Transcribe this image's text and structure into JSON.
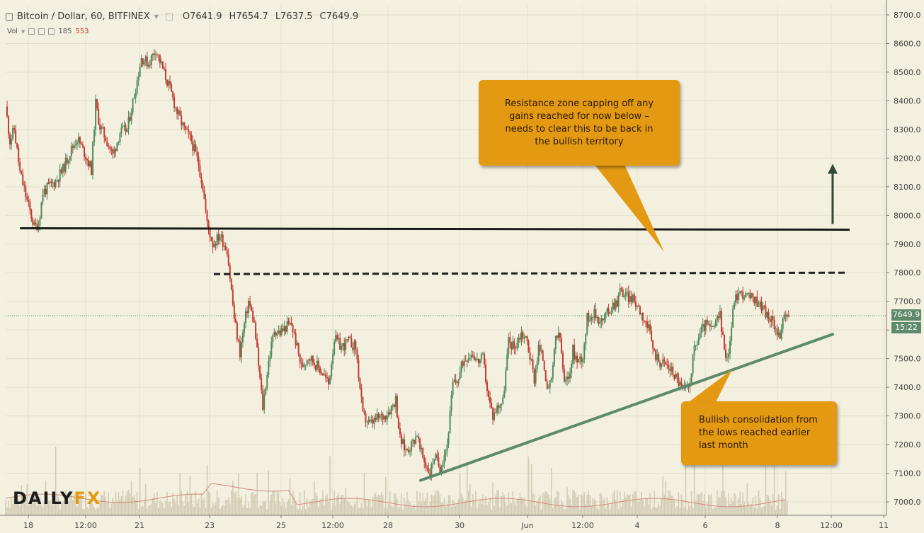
{
  "header": {
    "symbol": "Bitcoin / Dollar, 60, BITFINEX",
    "open": "O7641.9",
    "high": "H7654.7",
    "low": "L7637.5",
    "close": "C7649.9"
  },
  "volume_header": {
    "label": "Vol",
    "value1": "185",
    "value2": "553"
  },
  "callouts": {
    "resistance": "Resistance zone capping off any gains reached for now below – needs to clear this to be back in the bullish territory",
    "bullish": "Bullish consolidation from the lows reached earlier last month"
  },
  "logo": {
    "part1": "DAILY",
    "part2": "FX"
  },
  "price_tag": "7649.9",
  "time_tag": "15:22",
  "colors": {
    "background": "#f3f0df",
    "up_candle": "#4d8a5c",
    "down_candle": "#c23b31",
    "grid": "#e3dfcb",
    "callout": "#e39a12",
    "trendline": "#5d8a6a",
    "resistance_line": "#1a1a1a"
  },
  "chart_data": {
    "type": "candlestick",
    "title": "Bitcoin / Dollar, 60, BITFINEX",
    "yaxis": {
      "ticks": [
        "7000.0",
        "7100.0",
        "7200.0",
        "7300.0",
        "7400.0",
        "7500.0",
        "7600.0",
        "7700.0",
        "7800.0",
        "7900.0",
        "8000.0",
        "8100.0",
        "8200.0",
        "8300.0",
        "8400.0",
        "8500.0",
        "8600.0",
        "8700.0"
      ],
      "range": [
        6970,
        8720
      ]
    },
    "xaxis": {
      "ticks": [
        "18",
        "12:00",
        "21",
        "23",
        "25",
        "12:00",
        "28",
        "30",
        "Jun",
        "12:00",
        "4",
        "6",
        "8",
        "12:00",
        "11"
      ]
    },
    "last_price": 7649.9,
    "price_path": [
      [
        0,
        8380
      ],
      [
        3,
        8260
      ],
      [
        6,
        8300
      ],
      [
        10,
        8150
      ],
      [
        15,
        8050
      ],
      [
        20,
        7960
      ],
      [
        23,
        7970
      ],
      [
        26,
        8080
      ],
      [
        30,
        8100
      ],
      [
        35,
        8120
      ],
      [
        40,
        8160
      ],
      [
        45,
        8220
      ],
      [
        50,
        8270
      ],
      [
        55,
        8220
      ],
      [
        60,
        8160
      ],
      [
        63,
        8390
      ],
      [
        66,
        8310
      ],
      [
        70,
        8270
      ],
      [
        75,
        8210
      ],
      [
        80,
        8290
      ],
      [
        85,
        8300
      ],
      [
        90,
        8420
      ],
      [
        95,
        8550
      ],
      [
        100,
        8530
      ],
      [
        105,
        8580
      ],
      [
        110,
        8510
      ],
      [
        115,
        8440
      ],
      [
        120,
        8360
      ],
      [
        125,
        8300
      ],
      [
        130,
        8260
      ],
      [
        135,
        8180
      ],
      [
        138,
        8100
      ],
      [
        141,
        7970
      ],
      [
        145,
        7900
      ],
      [
        150,
        7930
      ],
      [
        155,
        7880
      ],
      [
        160,
        7640
      ],
      [
        164,
        7520
      ],
      [
        167,
        7620
      ],
      [
        170,
        7700
      ],
      [
        174,
        7620
      ],
      [
        180,
        7330
      ],
      [
        184,
        7490
      ],
      [
        188,
        7600
      ],
      [
        192,
        7590
      ],
      [
        196,
        7610
      ],
      [
        200,
        7620
      ],
      [
        203,
        7560
      ],
      [
        207,
        7470
      ],
      [
        212,
        7510
      ],
      [
        217,
        7480
      ],
      [
        222,
        7450
      ],
      [
        226,
        7410
      ],
      [
        230,
        7570
      ],
      [
        235,
        7540
      ],
      [
        240,
        7560
      ],
      [
        245,
        7540
      ],
      [
        250,
        7300
      ],
      [
        255,
        7270
      ],
      [
        260,
        7290
      ],
      [
        265,
        7300
      ],
      [
        270,
        7330
      ],
      [
        273,
        7360
      ],
      [
        276,
        7220
      ],
      [
        280,
        7180
      ],
      [
        284,
        7200
      ],
      [
        288,
        7240
      ],
      [
        290,
        7180
      ],
      [
        294,
        7130
      ],
      [
        297,
        7100
      ],
      [
        300,
        7160
      ],
      [
        304,
        7120
      ],
      [
        309,
        7200
      ],
      [
        313,
        7410
      ],
      [
        317,
        7430
      ],
      [
        320,
        7490
      ],
      [
        323,
        7510
      ],
      [
        327,
        7520
      ],
      [
        330,
        7490
      ],
      [
        334,
        7500
      ],
      [
        338,
        7360
      ],
      [
        341,
        7300
      ],
      [
        345,
        7340
      ],
      [
        348,
        7350
      ],
      [
        352,
        7560
      ],
      [
        356,
        7540
      ],
      [
        361,
        7590
      ],
      [
        365,
        7560
      ],
      [
        370,
        7430
      ],
      [
        373,
        7540
      ],
      [
        376,
        7500
      ],
      [
        380,
        7380
      ],
      [
        383,
        7460
      ],
      [
        385,
        7580
      ],
      [
        388,
        7570
      ],
      [
        391,
        7410
      ],
      [
        394,
        7430
      ],
      [
        397,
        7530
      ],
      [
        400,
        7490
      ],
      [
        404,
        7510
      ],
      [
        407,
        7640
      ],
      [
        411,
        7660
      ],
      [
        415,
        7640
      ],
      [
        418,
        7630
      ],
      [
        421,
        7660
      ],
      [
        425,
        7690
      ],
      [
        428,
        7700
      ],
      [
        430,
        7740
      ],
      [
        434,
        7720
      ],
      [
        438,
        7710
      ],
      [
        442,
        7690
      ],
      [
        446,
        7650
      ],
      [
        450,
        7600
      ],
      [
        454,
        7520
      ],
      [
        458,
        7490
      ],
      [
        462,
        7480
      ],
      [
        466,
        7460
      ],
      [
        470,
        7430
      ],
      [
        474,
        7390
      ],
      [
        478,
        7400
      ],
      [
        482,
        7530
      ],
      [
        486,
        7590
      ],
      [
        490,
        7620
      ],
      [
        494,
        7600
      ],
      [
        498,
        7630
      ],
      [
        500,
        7660
      ],
      [
        503,
        7520
      ],
      [
        506,
        7520
      ],
      [
        510,
        7710
      ],
      [
        514,
        7730
      ],
      [
        518,
        7720
      ],
      [
        522,
        7710
      ],
      [
        526,
        7700
      ],
      [
        530,
        7680
      ],
      [
        534,
        7640
      ],
      [
        538,
        7620
      ],
      [
        542,
        7580
      ],
      [
        545,
        7640
      ],
      [
        548,
        7650
      ]
    ],
    "trendline": {
      "from": [
        297,
        7075
      ],
      "to": [
        560,
        7585
      ]
    },
    "resistance_line": {
      "from": [
        10,
        7955
      ],
      "to": [
        575,
        7950
      ]
    },
    "dashed_line": {
      "from": [
        145,
        7795
      ],
      "to": [
        570,
        7800
      ]
    },
    "up_arrow": {
      "at": 562,
      "from": 7970,
      "to": 8175
    }
  }
}
